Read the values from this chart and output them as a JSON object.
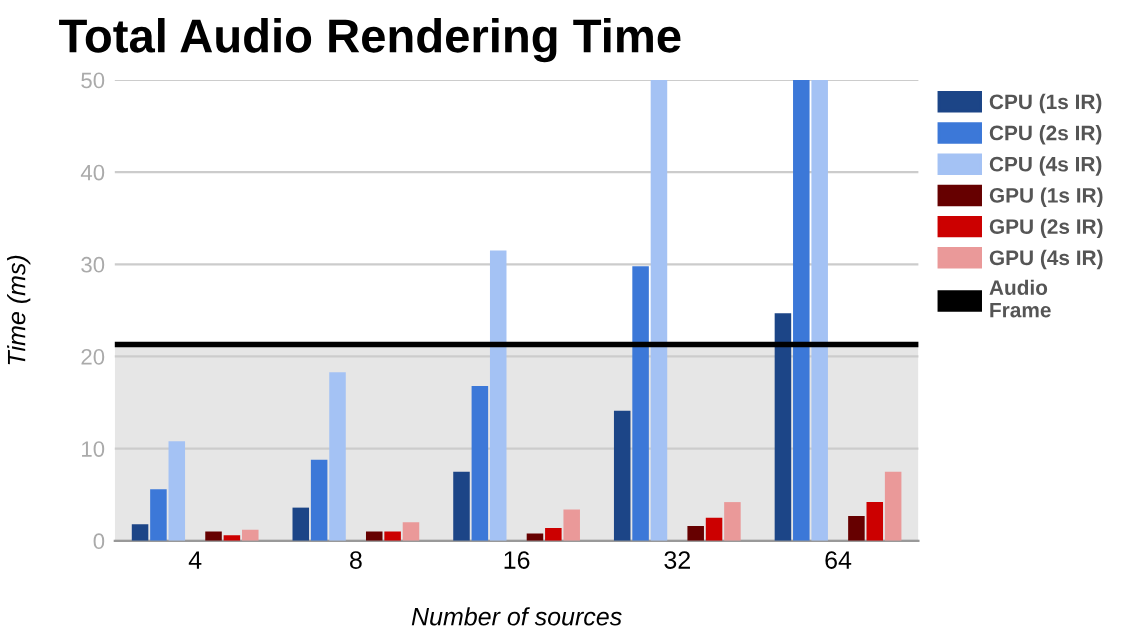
{
  "chart_data": {
    "type": "bar",
    "title": "Total Audio Rendering Time",
    "xlabel": "Number of sources",
    "ylabel": "Time (ms)",
    "categories": [
      "4",
      "8",
      "16",
      "32",
      "64"
    ],
    "series": [
      {
        "name": "CPU (1s IR)",
        "color": "#1c4587",
        "values": [
          1.8,
          3.6,
          7.5,
          14.1,
          24.7
        ]
      },
      {
        "name": "CPU (2s IR)",
        "color": "#3c78d8",
        "values": [
          5.6,
          8.8,
          16.8,
          29.8,
          50
        ]
      },
      {
        "name": "CPU (4s IR)",
        "color": "#a4c2f4",
        "values": [
          10.8,
          18.3,
          31.5,
          50,
          50
        ]
      },
      {
        "name": "GPU (1s IR)",
        "color": "#660000",
        "values": [
          1.0,
          1.0,
          0.8,
          1.6,
          2.7
        ]
      },
      {
        "name": "GPU (2s IR)",
        "color": "#cc0000",
        "values": [
          0.6,
          1.0,
          1.4,
          2.5,
          4.2
        ]
      },
      {
        "name": "GPU (4s IR)",
        "color": "#ea9999",
        "values": [
          1.2,
          2.0,
          3.4,
          4.2,
          7.5
        ]
      }
    ],
    "ref_lines": [
      {
        "axis": "y",
        "value": 21.3,
        "label": "Audio Frame",
        "color": "#000000"
      }
    ],
    "bands": [
      {
        "axis": "y",
        "from": 0,
        "to": 21.3,
        "color": "#e6e6e6"
      }
    ],
    "ylim": [
      0,
      50
    ],
    "yticks": [
      0,
      10,
      20,
      30,
      40,
      50
    ],
    "grid": "y",
    "legend": "right"
  }
}
